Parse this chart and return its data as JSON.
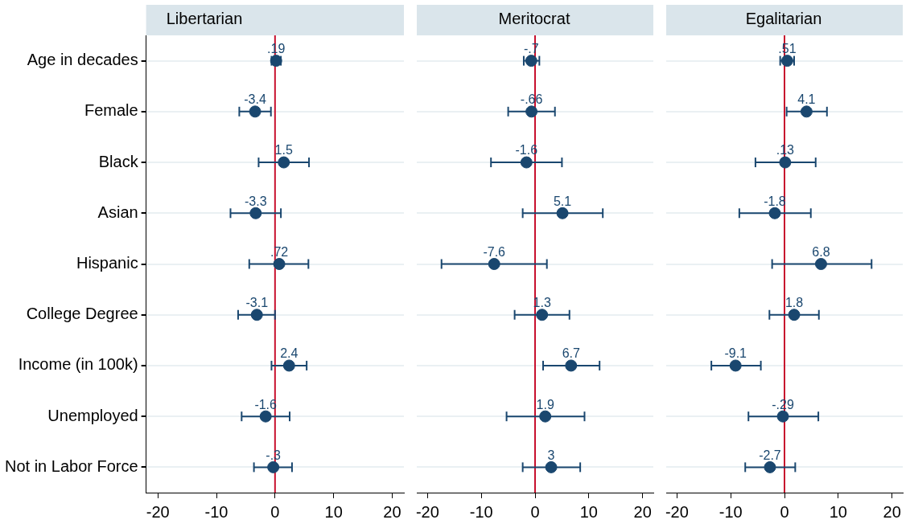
{
  "chart_data": [
    {
      "type": "scatter",
      "orientation": "horizontal",
      "title": "Libertarian",
      "categories": [
        "Age in decades",
        "Female",
        "Black",
        "Asian",
        "Hispanic",
        "College Degree",
        "Income (in 100k)",
        "Unemployed",
        "Not in Labor Force"
      ],
      "values": [
        0.19,
        -3.4,
        1.5,
        -3.3,
        0.72,
        -3.1,
        2.4,
        -1.6,
        -0.3
      ],
      "errors": [
        [
          -0.6,
          1.0
        ],
        [
          -6.1,
          -0.7
        ],
        [
          -2.8,
          5.8
        ],
        [
          -7.6,
          1.0
        ],
        [
          -4.4,
          5.7
        ],
        [
          -6.3,
          0.0
        ],
        [
          -0.6,
          5.4
        ],
        [
          -5.7,
          2.5
        ],
        [
          -3.6,
          2.9
        ]
      ],
      "value_labels": [
        ".19",
        "-3.4",
        "1.5",
        "-3.3",
        ".72",
        "-3.1",
        "2.4",
        "-1.6",
        "-.3"
      ],
      "color": "#1a476f",
      "marker": "circle",
      "xlim": [
        -22,
        22
      ],
      "xticks": [
        -20,
        -10,
        0,
        10,
        20
      ],
      "grid": "y",
      "ref_lines": [
        {
          "axis": "x",
          "value": 0,
          "color": "#c8102e"
        }
      ]
    },
    {
      "type": "scatter",
      "orientation": "horizontal",
      "title": "Meritocrat",
      "categories": [
        null,
        null,
        null,
        null,
        null,
        null,
        null,
        null,
        null
      ],
      "values": [
        -0.7,
        -0.66,
        -1.6,
        5.1,
        -7.6,
        1.3,
        6.7,
        1.9,
        3
      ],
      "errors": [
        [
          -2.1,
          0.8
        ],
        [
          -5.0,
          3.7
        ],
        [
          -8.2,
          5.0
        ],
        [
          -2.3,
          12.6
        ],
        [
          -17.4,
          2.2
        ],
        [
          -3.8,
          6.4
        ],
        [
          1.5,
          12.0
        ],
        [
          -5.3,
          9.2
        ],
        [
          -2.3,
          8.4
        ]
      ],
      "value_labels": [
        "-.7",
        "-.66",
        "-1.6",
        "5.1",
        "-7.6",
        "1.3",
        "6.7",
        "1.9",
        "3"
      ],
      "color": "#1a476f",
      "marker": "circle",
      "xlim": [
        -22,
        22
      ],
      "xticks": [
        -20,
        -10,
        0,
        10,
        20
      ],
      "grid": "y",
      "tick_labels": "x",
      "ref_lines": [
        {
          "axis": "x",
          "value": 0,
          "color": "#c8102e"
        }
      ]
    },
    {
      "type": "scatter",
      "orientation": "horizontal",
      "title": "Egalitarian",
      "categories": [
        null,
        null,
        null,
        null,
        null,
        null,
        null,
        null,
        null
      ],
      "values": [
        0.51,
        4.1,
        0.13,
        -1.8,
        6.8,
        1.8,
        -9.1,
        -0.29,
        -2.7
      ],
      "errors": [
        [
          -0.8,
          1.8
        ],
        [
          0.4,
          7.9
        ],
        [
          -5.4,
          5.8
        ],
        [
          -8.4,
          4.9
        ],
        [
          -2.3,
          16.2
        ],
        [
          -2.8,
          6.4
        ],
        [
          -13.6,
          -4.4
        ],
        [
          -6.7,
          6.3
        ],
        [
          -7.3,
          2.0
        ]
      ],
      "value_labels": [
        ".51",
        "4.1",
        ".13",
        "-1.8",
        "6.8",
        "1.8",
        "-9.1",
        "-.29",
        "-2.7"
      ],
      "color": "#1a476f",
      "marker": "circle",
      "xlim": [
        -22,
        22
      ],
      "xticks": [
        -20,
        -10,
        0,
        10,
        20
      ],
      "grid": "y",
      "tick_labels": "x",
      "ref_lines": [
        {
          "axis": "x",
          "value": 0,
          "color": "#c8102e"
        }
      ]
    }
  ]
}
